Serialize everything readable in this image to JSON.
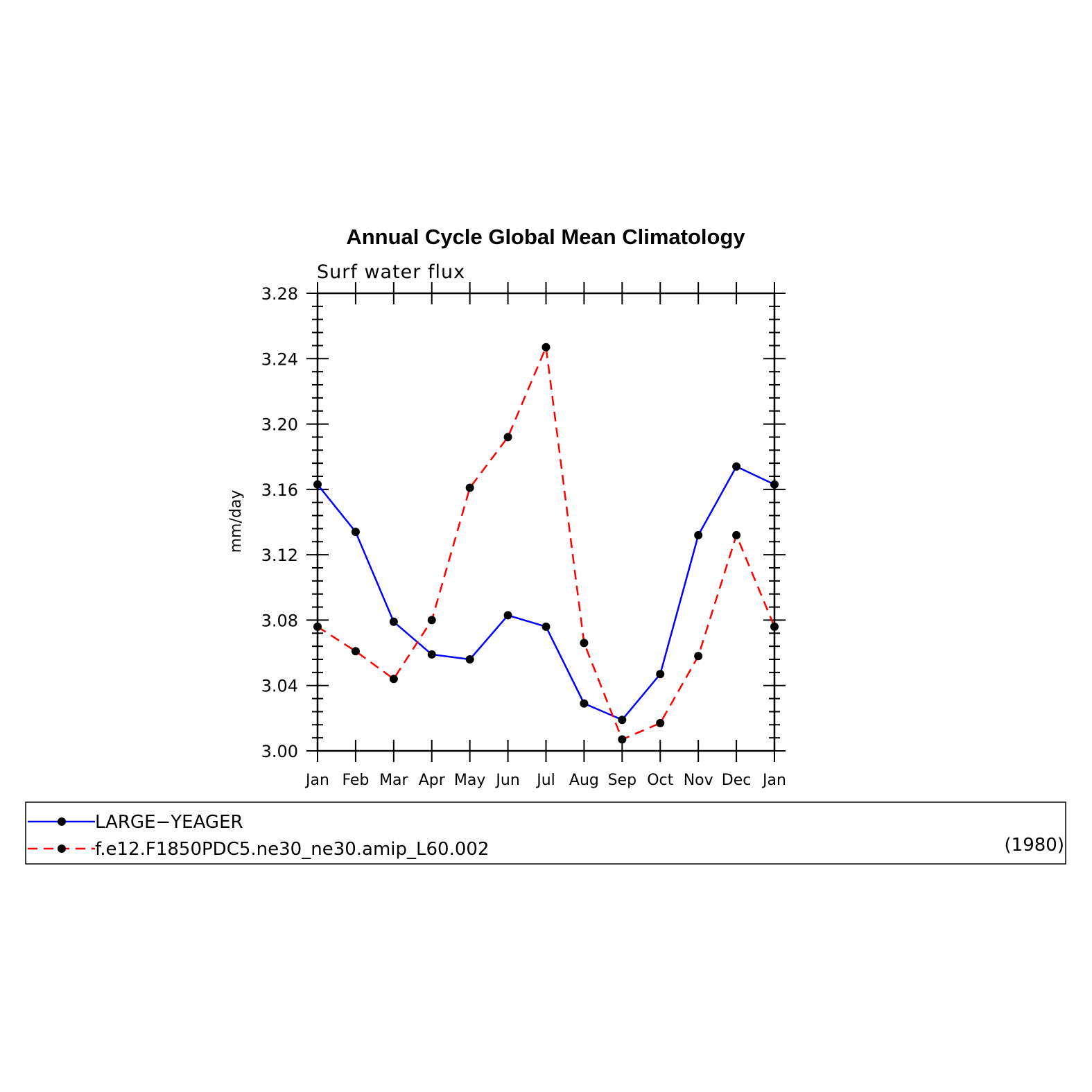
{
  "chart_data": {
    "type": "line",
    "title": "Annual Cycle Global Mean Climatology",
    "subtitle": "Surf water flux",
    "ylabel": "mm/day",
    "xlabel": "",
    "categories": [
      "Jan",
      "Feb",
      "Mar",
      "Apr",
      "May",
      "Jun",
      "Jul",
      "Aug",
      "Sep",
      "Oct",
      "Nov",
      "Dec",
      "Jan"
    ],
    "ylim": [
      3.0,
      3.28
    ],
    "yticks": [
      "3.00",
      "3.04",
      "3.08",
      "3.12",
      "3.16",
      "3.20",
      "3.24",
      "3.28"
    ],
    "grid": false,
    "legend_position": "bottom",
    "series": [
      {
        "name": "LARGE−YEAGER",
        "color": "#0000ff",
        "dash": "solid",
        "values": [
          3.163,
          3.134,
          3.079,
          3.059,
          3.056,
          3.083,
          3.076,
          3.029,
          3.019,
          3.047,
          3.132,
          3.174,
          3.163
        ]
      },
      {
        "name": "f.e12.F1850PDC5.ne30_ne30.amip_L60.002",
        "color": "#ff0000",
        "dash": "dashed",
        "values": [
          3.076,
          3.061,
          3.044,
          3.08,
          3.161,
          3.192,
          3.247,
          3.066,
          3.007,
          3.017,
          3.058,
          3.132,
          3.076
        ]
      }
    ],
    "legend_note": "(1980)"
  }
}
